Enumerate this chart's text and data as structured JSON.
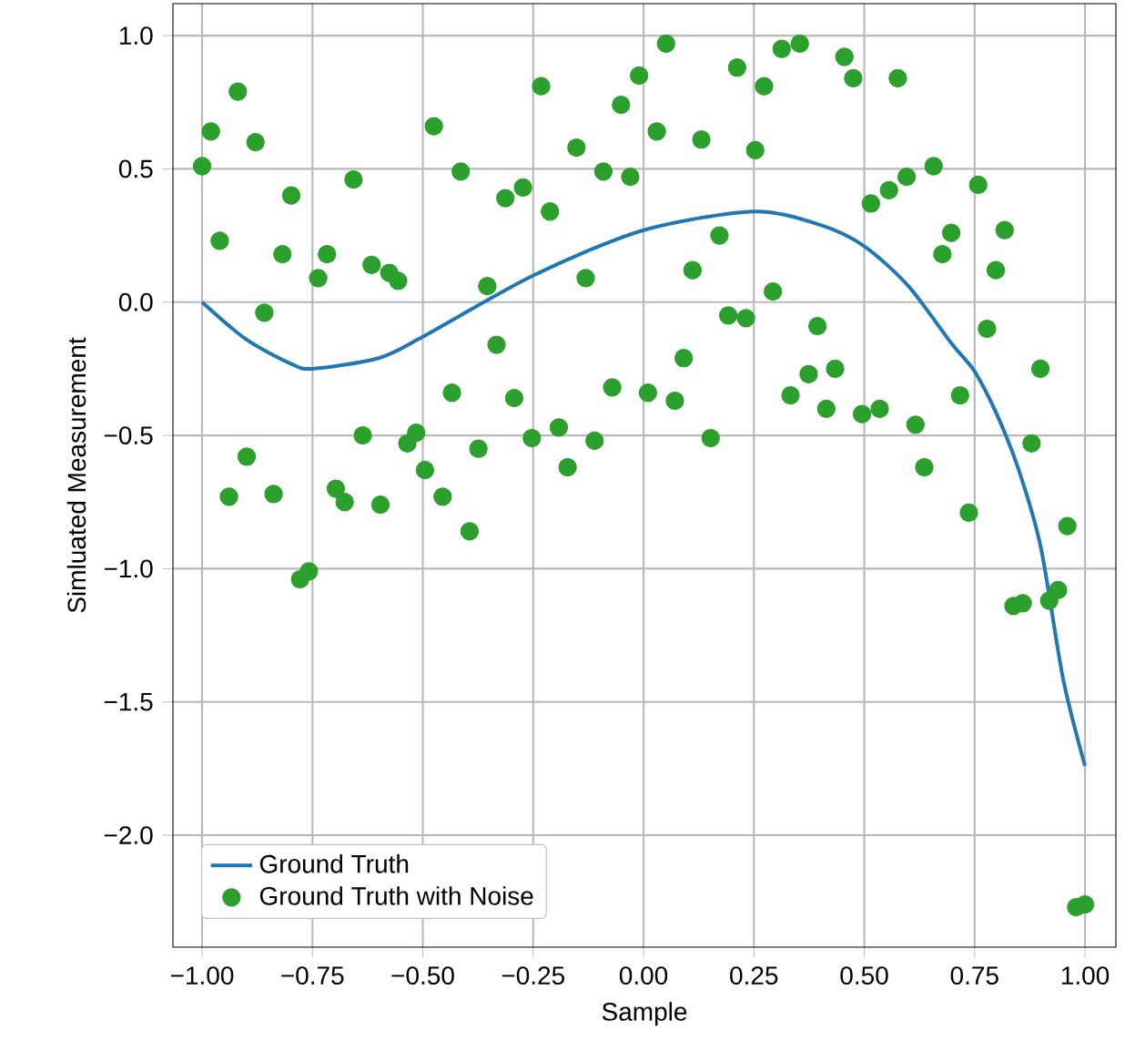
{
  "chart_data": {
    "type": "scatter",
    "xlabel": "Sample",
    "ylabel": "Simluated Measurement",
    "xlim": [
      -1.066,
      1.07
    ],
    "ylim": [
      -2.42,
      1.12
    ],
    "xticks": [
      {
        "value": -1,
        "label": "−1.00"
      },
      {
        "value": -0.75,
        "label": "−0.75"
      },
      {
        "value": -0.5,
        "label": "−0.50"
      },
      {
        "value": -0.25,
        "label": "−0.25"
      },
      {
        "value": 0,
        "label": "0.00"
      },
      {
        "value": 0.25,
        "label": "0.25"
      },
      {
        "value": 0.5,
        "label": "0.50"
      },
      {
        "value": 0.75,
        "label": "0.75"
      },
      {
        "value": 1,
        "label": "1.00"
      }
    ],
    "yticks": [
      {
        "value": -2,
        "label": "−2.0"
      },
      {
        "value": -1.5,
        "label": "−1.5"
      },
      {
        "value": -1,
        "label": "−1.0"
      },
      {
        "value": -0.5,
        "label": "−0.5"
      },
      {
        "value": 0,
        "label": "0.0"
      },
      {
        "value": 0.5,
        "label": "0.5"
      },
      {
        "value": 1,
        "label": "1.0"
      }
    ],
    "grid": true,
    "legend": "bottom left",
    "series": [
      {
        "name": "Ground Truth",
        "type": "line",
        "color": "#1f77b4",
        "marker": "none",
        "line_style": "solid",
        "x": [
          -1,
          -0.9,
          -0.8,
          -0.75,
          -0.6,
          -0.5,
          -0.25,
          0,
          0.25,
          0.4,
          0.5,
          0.6,
          0.7,
          0.75,
          0.8,
          0.85,
          0.9,
          0.95,
          1
        ],
        "values": [
          0,
          -0.14,
          -0.23,
          -0.25,
          -0.21,
          -0.13,
          0.1,
          0.27,
          0.34,
          0.29,
          0.21,
          0.06,
          -0.16,
          -0.26,
          -0.42,
          -0.63,
          -0.92,
          -1.41,
          -1.74
        ]
      },
      {
        "name": "Ground Truth with Noise",
        "color": "#2ca02c",
        "marker": "circle",
        "x": [
          -1.0,
          -0.98,
          -0.96,
          -0.939,
          -0.919,
          -0.899,
          -0.879,
          -0.859,
          -0.838,
          -0.818,
          -0.798,
          -0.778,
          -0.758,
          -0.737,
          -0.717,
          -0.697,
          -0.677,
          -0.657,
          -0.636,
          -0.616,
          -0.596,
          -0.576,
          -0.556,
          -0.535,
          -0.515,
          -0.495,
          -0.475,
          -0.455,
          -0.434,
          -0.414,
          -0.394,
          -0.374,
          -0.354,
          -0.333,
          -0.313,
          -0.293,
          -0.273,
          -0.253,
          -0.232,
          -0.212,
          -0.192,
          -0.172,
          -0.152,
          -0.131,
          -0.111,
          -0.091,
          -0.071,
          -0.051,
          -0.03,
          -0.01,
          0.01,
          0.03,
          0.051,
          0.071,
          0.091,
          0.111,
          0.131,
          0.152,
          0.172,
          0.192,
          0.212,
          0.232,
          0.253,
          0.273,
          0.293,
          0.313,
          0.333,
          0.354,
          0.374,
          0.394,
          0.414,
          0.434,
          0.455,
          0.475,
          0.495,
          0.515,
          0.535,
          0.556,
          0.576,
          0.596,
          0.616,
          0.636,
          0.657,
          0.677,
          0.697,
          0.717,
          0.737,
          0.758,
          0.778,
          0.798,
          0.818,
          0.838,
          0.859,
          0.879,
          0.899,
          0.919,
          0.939,
          0.96,
          0.98,
          1.0
        ],
        "values": [
          0.51,
          0.64,
          0.23,
          -0.73,
          0.79,
          -0.58,
          0.6,
          -0.04,
          -0.72,
          0.18,
          0.4,
          -1.04,
          -1.01,
          0.09,
          0.18,
          -0.7,
          -0.75,
          0.46,
          -0.5,
          0.14,
          -0.76,
          0.11,
          0.08,
          -0.53,
          -0.49,
          -0.63,
          0.66,
          -0.73,
          -0.34,
          0.49,
          -0.86,
          -0.55,
          0.06,
          -0.16,
          0.39,
          -0.36,
          0.43,
          -0.51,
          0.81,
          0.34,
          -0.47,
          -0.62,
          0.58,
          0.09,
          -0.52,
          0.49,
          -0.32,
          0.74,
          0.47,
          0.85,
          -0.34,
          0.64,
          0.97,
          -0.37,
          -0.21,
          0.12,
          0.61,
          -0.51,
          0.25,
          -0.05,
          0.88,
          -0.06,
          0.57,
          0.81,
          0.04,
          0.95,
          -0.35,
          0.97,
          -0.27,
          -0.09,
          -0.4,
          -0.25,
          0.92,
          0.84,
          -0.42,
          0.37,
          -0.4,
          0.42,
          0.84,
          0.47,
          -0.46,
          -0.62,
          0.51,
          0.18,
          0.26,
          -0.35,
          -0.79,
          0.44,
          -0.1,
          0.12,
          0.27,
          -1.14,
          -1.13,
          -0.53,
          -0.25,
          -1.12,
          -1.08,
          -0.84,
          -2.27,
          -2.26
        ]
      }
    ]
  }
}
